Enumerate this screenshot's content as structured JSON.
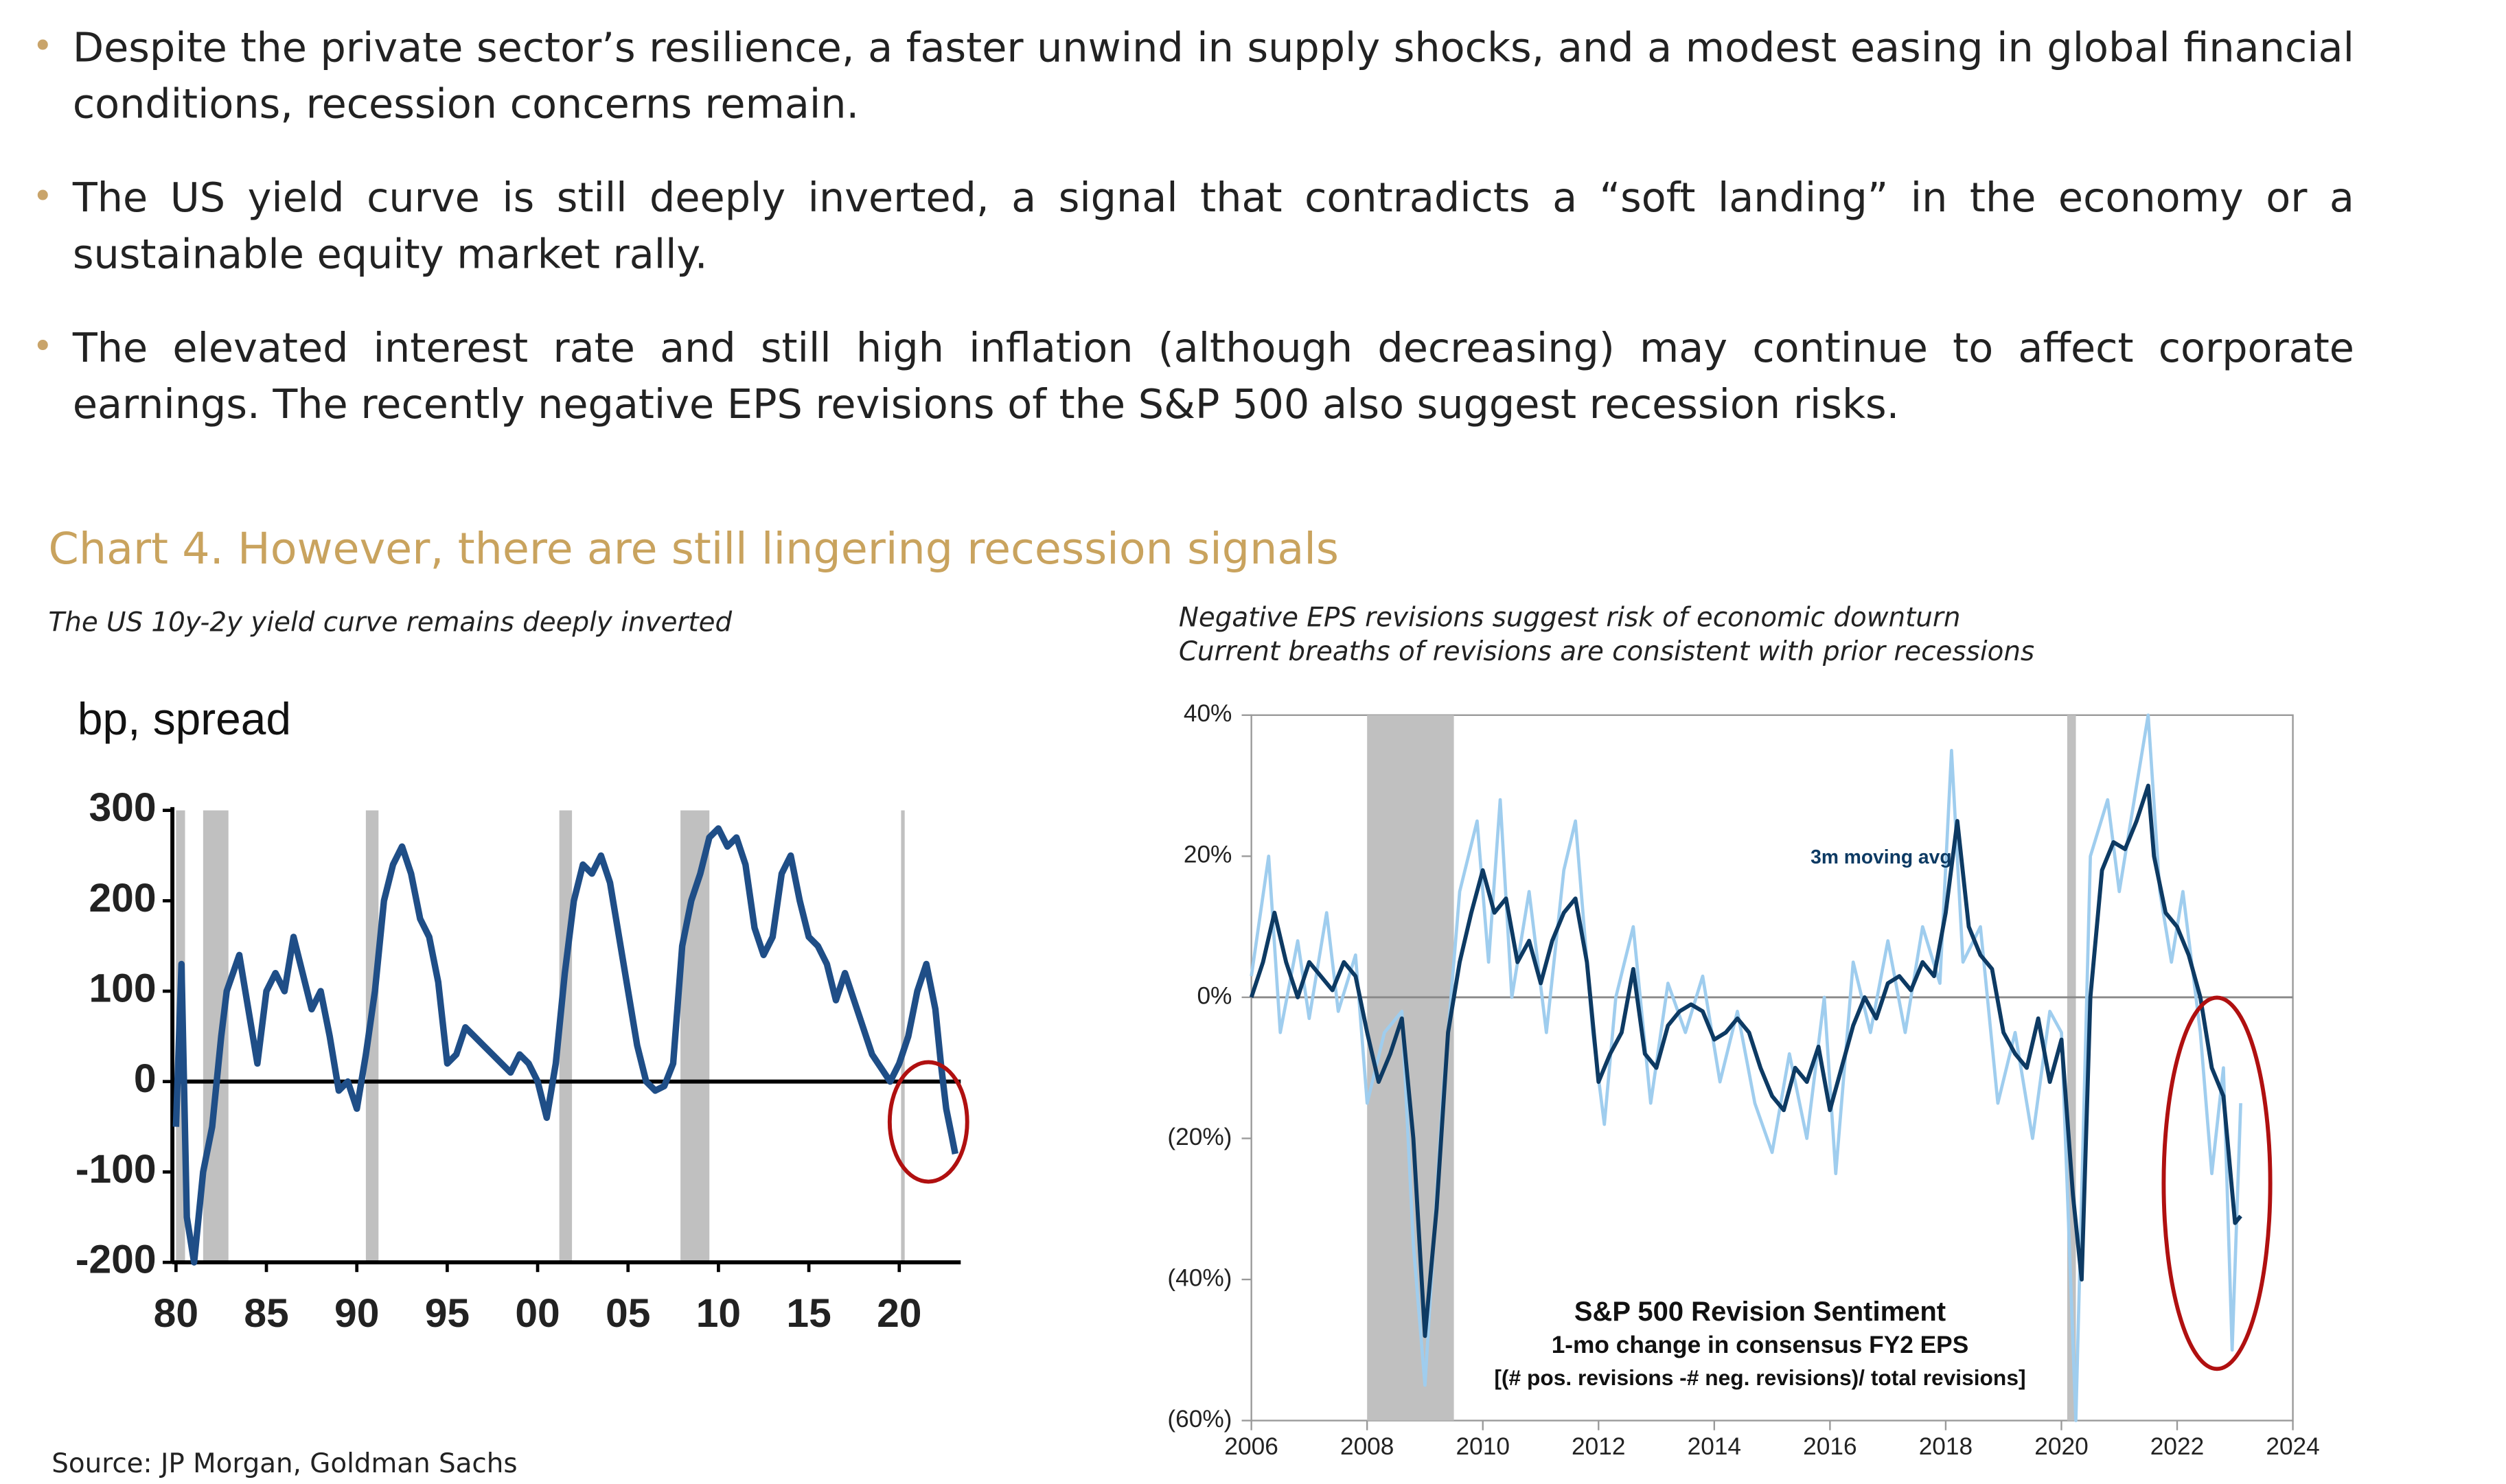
{
  "bullets": [
    "Despite the private sector’s resilience, a faster unwind in supply shocks, and a modest easing in global financial conditions, recession concerns remain.",
    "The US yield curve is still deeply inverted, a signal that contradicts a “soft landing” in the economy or a sustainable equity market rally.",
    "The elevated interest rate and still high inflation (although decreasing) may continue to affect corporate earnings. The recently negative EPS revisions of the S&P 500 also suggest recession risks."
  ],
  "heading": "Chart 4. However, there are still lingering recession signals",
  "source": "Source: JP Morgan, Goldman Sachs",
  "chart_data": [
    {
      "type": "line",
      "subtitle": "The US 10y-2y yield curve remains deeply inverted",
      "y_label": "bp, spread",
      "xlim": [
        1979.8,
        2023.4
      ],
      "ylim": [
        -200,
        300
      ],
      "xticks": [
        {
          "value": 1980,
          "label": "80"
        },
        {
          "value": 1985,
          "label": "85"
        },
        {
          "value": 1990,
          "label": "90"
        },
        {
          "value": 1995,
          "label": "95"
        },
        {
          "value": 2000,
          "label": "00"
        },
        {
          "value": 2005,
          "label": "05"
        },
        {
          "value": 2010,
          "label": "10"
        },
        {
          "value": 2015,
          "label": "15"
        },
        {
          "value": 2020,
          "label": "20"
        }
      ],
      "yticks": [
        300,
        200,
        100,
        0,
        -100,
        -200
      ],
      "recessions": [
        [
          1980.0,
          1980.5
        ],
        [
          1981.5,
          1982.9
        ],
        [
          1990.5,
          1991.2
        ],
        [
          2001.2,
          2001.9
        ],
        [
          2007.9,
          2009.5
        ],
        [
          2020.1,
          2020.3
        ]
      ],
      "recession_color": "#c0c0c0",
      "series": [
        {
          "color": "#1f4e87",
          "x": [
            1980.0,
            1980.3,
            1980.6,
            1981.0,
            1981.5,
            1982.0,
            1982.5,
            1982.8,
            1983.5,
            1984.0,
            1984.5,
            1985.0,
            1985.5,
            1986.0,
            1986.5,
            1987.0,
            1987.5,
            1988.0,
            1988.5,
            1989.0,
            1989.5,
            1990.0,
            1990.5,
            1991.0,
            1991.5,
            1992.0,
            1992.5,
            1993.0,
            1993.5,
            1994.0,
            1994.5,
            1995.0,
            1995.5,
            1996.0,
            1996.5,
            1997.0,
            1997.5,
            1998.0,
            1998.5,
            1999.0,
            1999.5,
            2000.0,
            2000.5,
            2001.0,
            2001.5,
            2002.0,
            2002.5,
            2003.0,
            2003.5,
            2004.0,
            2004.5,
            2005.0,
            2005.5,
            2006.0,
            2006.5,
            2007.0,
            2007.5,
            2008.0,
            2008.5,
            2009.0,
            2009.5,
            2010.0,
            2010.5,
            2011.0,
            2011.5,
            2012.0,
            2012.5,
            2013.0,
            2013.5,
            2014.0,
            2014.5,
            2015.0,
            2015.5,
            2016.0,
            2016.5,
            2017.0,
            2017.5,
            2018.0,
            2018.5,
            2019.0,
            2019.5,
            2020.0,
            2020.5,
            2021.0,
            2021.5,
            2022.0,
            2022.3,
            2022.6,
            2022.9,
            2023.1
          ],
          "values": [
            -50,
            130,
            -150,
            -200,
            -100,
            -50,
            50,
            100,
            140,
            80,
            20,
            100,
            120,
            100,
            160,
            120,
            80,
            100,
            50,
            -10,
            0,
            -30,
            30,
            100,
            200,
            240,
            260,
            230,
            180,
            160,
            110,
            20,
            30,
            60,
            50,
            40,
            30,
            20,
            10,
            30,
            20,
            0,
            -40,
            20,
            120,
            200,
            240,
            230,
            250,
            220,
            160,
            100,
            40,
            0,
            -10,
            -5,
            20,
            150,
            200,
            230,
            270,
            280,
            260,
            270,
            240,
            170,
            140,
            160,
            230,
            250,
            200,
            160,
            150,
            130,
            90,
            120,
            90,
            60,
            30,
            15,
            0,
            20,
            50,
            100,
            130,
            80,
            20,
            -30,
            -60,
            -80
          ]
        }
      ]
    },
    {
      "type": "line",
      "subtitle": [
        "Negative EPS revisions suggest risk of economic downturn",
        "Current breaths of revisions are consistent with prior recessions"
      ],
      "xlim": [
        2006,
        2024
      ],
      "ylim": [
        -60,
        40
      ],
      "xticks": [
        2006,
        2008,
        2010,
        2012,
        2014,
        2016,
        2018,
        2020,
        2022,
        2024
      ],
      "yticks": [
        {
          "value": 40,
          "label": "40%"
        },
        {
          "value": 20,
          "label": "20%"
        },
        {
          "value": 0,
          "label": "0%"
        },
        {
          "value": -20,
          "label": "(20%)"
        },
        {
          "value": -40,
          "label": "(40%)"
        },
        {
          "value": -60,
          "label": "(60%)"
        }
      ],
      "recessions": [
        [
          2008.0,
          2009.5
        ],
        [
          2020.1,
          2020.25
        ]
      ],
      "recession_color": "#c0c0c0",
      "annotations": [
        "S&P 500 Revision Sentiment",
        "1-mo change in consensus FY2 EPS",
        "[(# pos. revisions -# neg. revisions)/ total revisions]"
      ],
      "series": [
        {
          "color": "#9fcdee",
          "x": [
            2006.0,
            2006.3,
            2006.5,
            2006.8,
            2007.0,
            2007.3,
            2007.5,
            2007.8,
            2008.0,
            2008.3,
            2008.6,
            2008.8,
            2009.0,
            2009.3,
            2009.6,
            2009.9,
            2010.1,
            2010.3,
            2010.5,
            2010.8,
            2011.1,
            2011.4,
            2011.6,
            2011.9,
            2012.1,
            2012.3,
            2012.6,
            2012.9,
            2013.2,
            2013.5,
            2013.8,
            2014.1,
            2014.4,
            2014.7,
            2015.0,
            2015.3,
            2015.6,
            2015.9,
            2016.1,
            2016.4,
            2016.7,
            2017.0,
            2017.3,
            2017.6,
            2017.9,
            2018.1,
            2018.3,
            2018.6,
            2018.9,
            2019.2,
            2019.5,
            2019.8,
            2020.0,
            2020.25,
            2020.5,
            2020.8,
            2021.0,
            2021.3,
            2021.5,
            2021.7,
            2021.9,
            2022.1,
            2022.4,
            2022.6,
            2022.8,
            2022.95,
            2023.1
          ],
          "values": [
            3,
            20,
            -5,
            8,
            -3,
            12,
            -2,
            6,
            -15,
            -5,
            -2,
            -35,
            -55,
            -15,
            15,
            25,
            5,
            28,
            0,
            15,
            -5,
            18,
            25,
            -5,
            -18,
            0,
            10,
            -15,
            2,
            -5,
            3,
            -12,
            -2,
            -15,
            -22,
            -8,
            -20,
            0,
            -25,
            5,
            -5,
            8,
            -5,
            10,
            2,
            35,
            5,
            10,
            -15,
            -5,
            -20,
            -2,
            -5,
            -60,
            20,
            28,
            15,
            30,
            40,
            15,
            5,
            15,
            -5,
            -25,
            -10,
            -50,
            -15
          ]
        },
        {
          "name": "3m moving avg",
          "color": "#0d3a63",
          "x": [
            2006.0,
            2006.2,
            2006.4,
            2006.6,
            2006.8,
            2007.0,
            2007.2,
            2007.4,
            2007.6,
            2007.8,
            2008.0,
            2008.2,
            2008.4,
            2008.6,
            2008.8,
            2009.0,
            2009.2,
            2009.4,
            2009.6,
            2009.8,
            2010.0,
            2010.2,
            2010.4,
            2010.6,
            2010.8,
            2011.0,
            2011.2,
            2011.4,
            2011.6,
            2011.8,
            2012.0,
            2012.2,
            2012.4,
            2012.6,
            2012.8,
            2013.0,
            2013.2,
            2013.4,
            2013.6,
            2013.8,
            2014.0,
            2014.2,
            2014.4,
            2014.6,
            2014.8,
            2015.0,
            2015.2,
            2015.4,
            2015.6,
            2015.8,
            2016.0,
            2016.2,
            2016.4,
            2016.6,
            2016.8,
            2017.0,
            2017.2,
            2017.4,
            2017.6,
            2017.8,
            2018.0,
            2018.2,
            2018.4,
            2018.6,
            2018.8,
            2019.0,
            2019.2,
            2019.4,
            2019.6,
            2019.8,
            2020.0,
            2020.2,
            2020.35,
            2020.5,
            2020.7,
            2020.9,
            2021.1,
            2021.3,
            2021.5,
            2021.6,
            2021.8,
            2022.0,
            2022.2,
            2022.4,
            2022.6,
            2022.8,
            2023.0,
            2023.1
          ],
          "values": [
            0,
            5,
            12,
            5,
            0,
            5,
            3,
            1,
            5,
            3,
            -5,
            -12,
            -8,
            -3,
            -20,
            -48,
            -30,
            -5,
            5,
            12,
            18,
            12,
            14,
            5,
            8,
            2,
            8,
            12,
            14,
            5,
            -12,
            -8,
            -5,
            4,
            -8,
            -10,
            -4,
            -2,
            -1,
            -2,
            -6,
            -5,
            -3,
            -5,
            -10,
            -14,
            -16,
            -10,
            -12,
            -7,
            -16,
            -10,
            -4,
            0,
            -3,
            2,
            3,
            1,
            5,
            3,
            12,
            25,
            10,
            6,
            4,
            -5,
            -8,
            -10,
            -3,
            -12,
            -6,
            -28,
            -40,
            0,
            18,
            22,
            21,
            25,
            30,
            20,
            12,
            10,
            6,
            0,
            -10,
            -14,
            -32,
            -31
          ]
        }
      ]
    }
  ]
}
